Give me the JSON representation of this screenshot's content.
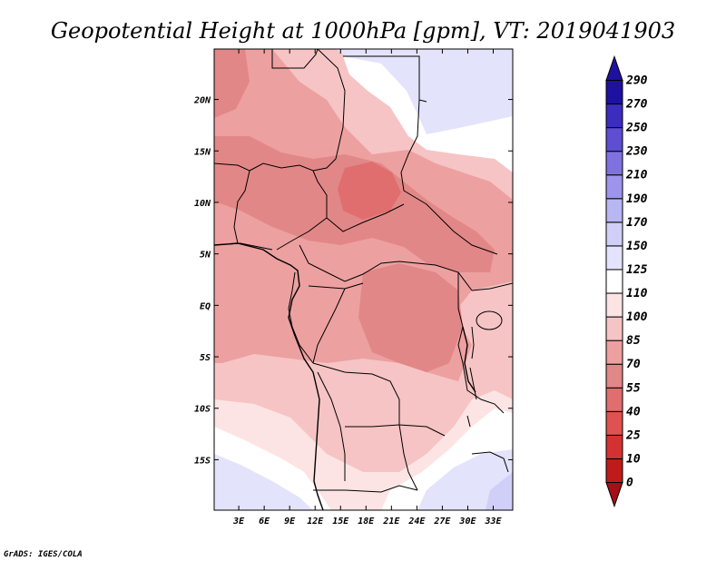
{
  "chart_data": {
    "type": "heatmap",
    "title": "Geopotential Height at 1000hPa [gpm], VT: 2019041903",
    "variable": "Geopotential Height at 1000hPa",
    "units": "gpm",
    "valid_time": "2019041903",
    "x_ticks": [
      "3E",
      "6E",
      "9E",
      "12E",
      "15E",
      "18E",
      "21E",
      "24E",
      "27E",
      "30E",
      "33E"
    ],
    "x_tick_values": [
      3,
      6,
      9,
      12,
      15,
      18,
      21,
      24,
      27,
      30,
      33
    ],
    "y_ticks": [
      "20N",
      "15N",
      "10N",
      "5N",
      "EQ",
      "5S",
      "10S",
      "15S"
    ],
    "y_tick_values": [
      20,
      15,
      10,
      5,
      0,
      -5,
      -10,
      -15
    ],
    "xlim": [
      0.1,
      35.3
    ],
    "ylim": [
      -19.9,
      24.9
    ],
    "colorbar": {
      "levels": [
        0,
        10,
        25,
        40,
        55,
        70,
        85,
        100,
        110,
        125,
        150,
        170,
        190,
        210,
        230,
        250,
        270,
        290
      ],
      "labels": [
        "0",
        "10",
        "25",
        "40",
        "55",
        "70",
        "85",
        "100",
        "110",
        "125",
        "150",
        "170",
        "190",
        "210",
        "230",
        "250",
        "270",
        "290"
      ],
      "colors": [
        "#a50f15",
        "#bf1b1b",
        "#d43232",
        "#e05151",
        "#e06e6e",
        "#e28787",
        "#eda0a0",
        "#f6c4c4",
        "#fde4e4",
        "#ffffff",
        "#e3e3fb",
        "#cfcff8",
        "#b9b6f4",
        "#9d95ec",
        "#7f72e0",
        "#5d4ed2",
        "#3c2dbe",
        "#1f11a0"
      ],
      "extend": "both"
    }
  },
  "credit": "GrADS: IGES/COLA"
}
